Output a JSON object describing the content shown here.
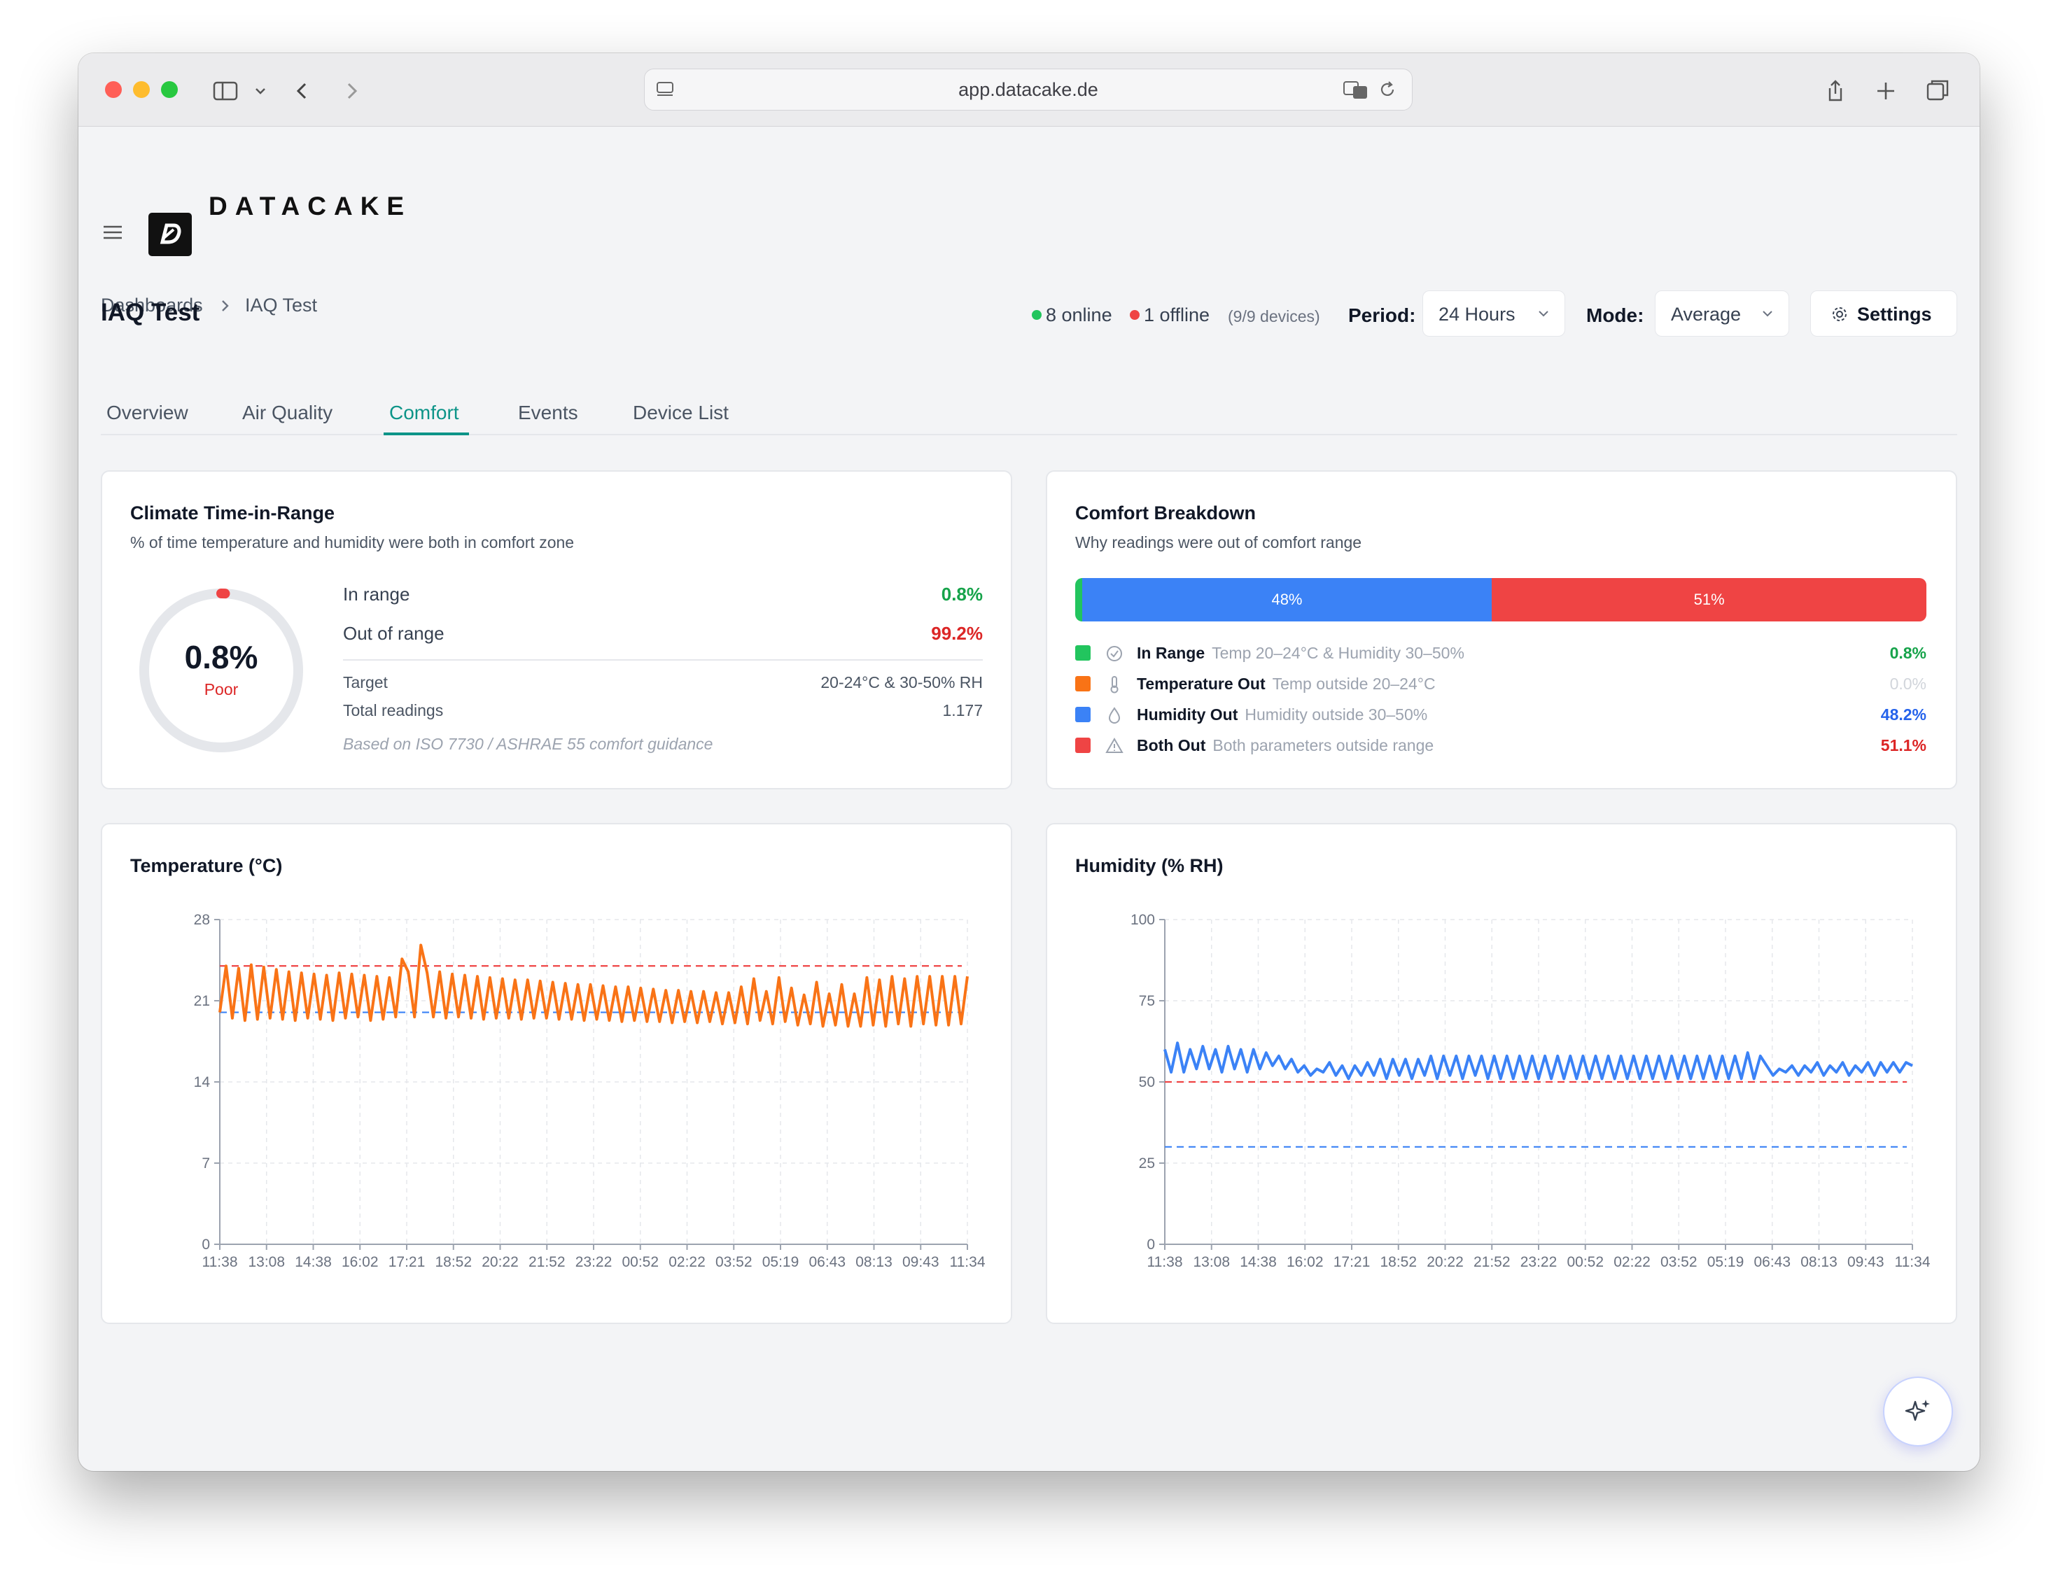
{
  "browser": {
    "url": "app.datacake.de"
  },
  "app": {
    "brand": "DATACAKE"
  },
  "breadcrumb": {
    "items": [
      "Dashboards",
      "IAQ Test"
    ]
  },
  "page": {
    "title": "IAQ Test"
  },
  "status": {
    "online": "8 online",
    "offline": "1 offline",
    "devices": "(9/9 devices)"
  },
  "filters": {
    "period_label": "Period:",
    "period_value": "24 Hours",
    "mode_label": "Mode:",
    "mode_value": "Average",
    "settings_label": "Settings"
  },
  "tabs": [
    {
      "label": "Overview",
      "active": false
    },
    {
      "label": "Air Quality",
      "active": false
    },
    {
      "label": "Comfort",
      "active": true
    },
    {
      "label": "Events",
      "active": false
    },
    {
      "label": "Device List",
      "active": false
    }
  ],
  "climate_card": {
    "title": "Climate Time-in-Range",
    "subtitle": "% of time temperature and humidity were both in comfort zone",
    "gauge_value": "0.8%",
    "gauge_fraction": 0.008,
    "gauge_rating": "Poor",
    "in_range_label": "In range",
    "in_range_value": "0.8%",
    "out_range_label": "Out of range",
    "out_range_value": "99.2%",
    "target_label": "Target",
    "target_value": "20-24°C & 30-50% RH",
    "total_label": "Total readings",
    "total_value": "1.177",
    "note": "Based on ISO 7730 / ASHRAE 55 comfort guidance"
  },
  "breakdown_card": {
    "title": "Comfort Breakdown",
    "subtitle": "Why readings were out of comfort range",
    "bar": [
      {
        "label": "",
        "fraction": 0.008,
        "color": "#22c55e"
      },
      {
        "label": "48%",
        "fraction": 0.482,
        "color": "#3b82f6"
      },
      {
        "label": "51%",
        "fraction": 0.511,
        "color": "#ef4444"
      }
    ],
    "legend": [
      {
        "name": "In Range",
        "desc": "Temp 20–24°C & Humidity 30–50%",
        "value": "0.8%",
        "color": "#22c55e",
        "value_color": "#16a34a",
        "icon": "check-circle-icon"
      },
      {
        "name": "Temperature Out",
        "desc": "Temp outside 20–24°C",
        "value": "0.0%",
        "color": "#f97316",
        "value_color": "#d1d5db",
        "icon": "thermometer-icon"
      },
      {
        "name": "Humidity Out",
        "desc": "Humidity outside 30–50%",
        "value": "48.2%",
        "color": "#3b82f6",
        "value_color": "#2563eb",
        "icon": "droplet-icon"
      },
      {
        "name": "Both Out",
        "desc": "Both parameters outside range",
        "value": "51.1%",
        "color": "#ef4444",
        "value_color": "#dc2626",
        "icon": "warning-triangle-icon"
      }
    ]
  },
  "chart_data": [
    {
      "type": "line",
      "title": "Temperature (°C)",
      "xlabel": "",
      "ylabel": "",
      "ylim": [
        0,
        28
      ],
      "yticks": [
        0,
        7,
        14,
        21,
        28
      ],
      "xticks": [
        "11:38",
        "13:08",
        "14:38",
        "16:02",
        "17:21",
        "18:52",
        "20:22",
        "21:52",
        "23:22",
        "00:52",
        "02:22",
        "03:52",
        "05:19",
        "06:43",
        "08:13",
        "09:43",
        "11:34"
      ],
      "thresholds": [
        {
          "value": 24,
          "color": "#ef4444"
        },
        {
          "value": 20,
          "color": "#3b82f6"
        }
      ],
      "series": [
        {
          "color": "#f97316",
          "values": [
            20.0,
            24.0,
            19.5,
            23.8,
            19.3,
            24.1,
            19.4,
            23.9,
            19.5,
            23.7,
            19.4,
            23.5,
            19.3,
            23.4,
            19.5,
            23.3,
            19.4,
            23.2,
            19.3,
            23.4,
            19.5,
            23.3,
            19.6,
            23.2,
            19.3,
            23.1,
            19.4,
            23.0,
            19.6,
            24.6,
            23.5,
            19.6,
            25.8,
            23.4,
            19.6,
            23.5,
            19.5,
            23.3,
            19.6,
            23.2,
            19.5,
            23.1,
            19.4,
            23.0,
            19.5,
            22.9,
            19.5,
            22.8,
            19.4,
            22.8,
            19.5,
            22.7,
            19.5,
            22.6,
            19.4,
            22.5,
            19.4,
            22.4,
            19.3,
            22.4,
            19.4,
            22.3,
            19.3,
            22.2,
            19.2,
            22.2,
            19.3,
            22.1,
            19.2,
            22.0,
            19.2,
            21.9,
            19.1,
            21.9,
            19.2,
            21.8,
            19.1,
            21.8,
            19.2,
            21.7,
            19.0,
            21.7,
            19.1,
            22.2,
            19.0,
            22.9,
            19.3,
            21.8,
            19.0,
            23.0,
            19.2,
            22.1,
            18.9,
            21.5,
            19.0,
            22.6,
            18.8,
            21.6,
            18.9,
            22.4,
            18.8,
            21.6,
            18.8,
            23.0,
            18.9,
            22.8,
            18.8,
            23.1,
            19.0,
            22.9,
            18.8,
            23.1,
            19.0,
            23.1,
            18.9,
            23.1,
            18.9,
            23.1,
            19.0,
            23.1
          ]
        }
      ]
    },
    {
      "type": "line",
      "title": "Humidity (% RH)",
      "xlabel": "",
      "ylabel": "",
      "ylim": [
        0,
        100
      ],
      "yticks": [
        0,
        25,
        50,
        75,
        100
      ],
      "xticks": [
        "11:38",
        "13:08",
        "14:38",
        "16:02",
        "17:21",
        "18:52",
        "20:22",
        "21:52",
        "23:22",
        "00:52",
        "02:22",
        "03:52",
        "05:19",
        "06:43",
        "08:13",
        "09:43",
        "11:34"
      ],
      "thresholds": [
        {
          "value": 50,
          "color": "#ef4444"
        },
        {
          "value": 30,
          "color": "#3b82f6"
        }
      ],
      "series": [
        {
          "color": "#3b82f6",
          "values": [
            60,
            53,
            62,
            53,
            60,
            54,
            61,
            54,
            60,
            53,
            61,
            54,
            60,
            53,
            60,
            54,
            59,
            55,
            58,
            54,
            57,
            53,
            55,
            52,
            54,
            53,
            56,
            52,
            55,
            51,
            55,
            52,
            56,
            52,
            57,
            51,
            57,
            52,
            57,
            51,
            57,
            52,
            58,
            51,
            58,
            52,
            58,
            51,
            58,
            52,
            58,
            51,
            58,
            51,
            58,
            51,
            58,
            51,
            58,
            51,
            58,
            51,
            58,
            51,
            58,
            51,
            58,
            51,
            58,
            51,
            58,
            51,
            58,
            51,
            58,
            51,
            58,
            51,
            58,
            51,
            58,
            51,
            58,
            51,
            58,
            51,
            58,
            51,
            58,
            51,
            58,
            51,
            59,
            51,
            58,
            55,
            52,
            54,
            53,
            55,
            52,
            55,
            53,
            56,
            52,
            55,
            53,
            56,
            52,
            55,
            53,
            56,
            52,
            56,
            53,
            56,
            53,
            56,
            55
          ]
        }
      ]
    }
  ]
}
